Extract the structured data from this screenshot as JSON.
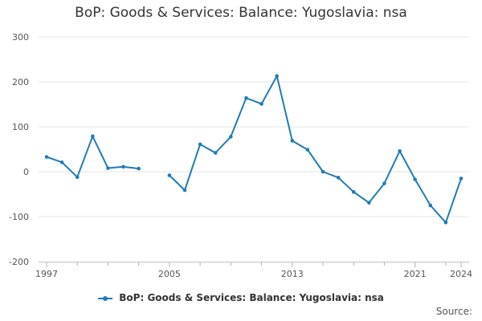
{
  "chart_data": {
    "type": "line",
    "title": "BoP: Goods & Services: Balance: Yugoslavia: nsa",
    "x_ticks": [
      "1997",
      "2005",
      "2013",
      "2021",
      "2024"
    ],
    "y_ticks": [
      300,
      200,
      100,
      0,
      -100,
      -200
    ],
    "ylim": [
      -200,
      300
    ],
    "xlim": [
      1997,
      2024
    ],
    "grid": true,
    "legend_position": "bottom",
    "series": [
      {
        "name": "BoP: Goods & Services: Balance: Yugoslavia: nsa",
        "color": "#1f7bb6",
        "points": [
          {
            "x": 1997,
            "y": 33
          },
          {
            "x": 1998,
            "y": 21
          },
          {
            "x": 1999,
            "y": -12
          },
          {
            "x": 2000,
            "y": 79
          },
          {
            "x": 2001,
            "y": 8
          },
          {
            "x": 2002,
            "y": 11
          },
          {
            "x": 2003,
            "y": 7
          },
          {
            "x": 2004,
            "y": null
          },
          {
            "x": 2005,
            "y": -8
          },
          {
            "x": 2006,
            "y": -41
          },
          {
            "x": 2007,
            "y": 61
          },
          {
            "x": 2008,
            "y": 42
          },
          {
            "x": 2009,
            "y": 78
          },
          {
            "x": 2010,
            "y": 164
          },
          {
            "x": 2011,
            "y": 151
          },
          {
            "x": 2012,
            "y": 213
          },
          {
            "x": 2013,
            "y": 69
          },
          {
            "x": 2014,
            "y": 49
          },
          {
            "x": 2015,
            "y": 0
          },
          {
            "x": 2016,
            "y": -13
          },
          {
            "x": 2017,
            "y": -45
          },
          {
            "x": 2018,
            "y": -69
          },
          {
            "x": 2019,
            "y": -26
          },
          {
            "x": 2020,
            "y": 46
          },
          {
            "x": 2021,
            "y": -17
          },
          {
            "x": 2022,
            "y": -75
          },
          {
            "x": 2023,
            "y": -113
          },
          {
            "x": 2024,
            "y": -15
          }
        ]
      }
    ]
  },
  "legend": {
    "label": "BoP: Goods & Services: Balance: Yugoslavia: nsa"
  },
  "footer": {
    "source_label": "Source:"
  }
}
